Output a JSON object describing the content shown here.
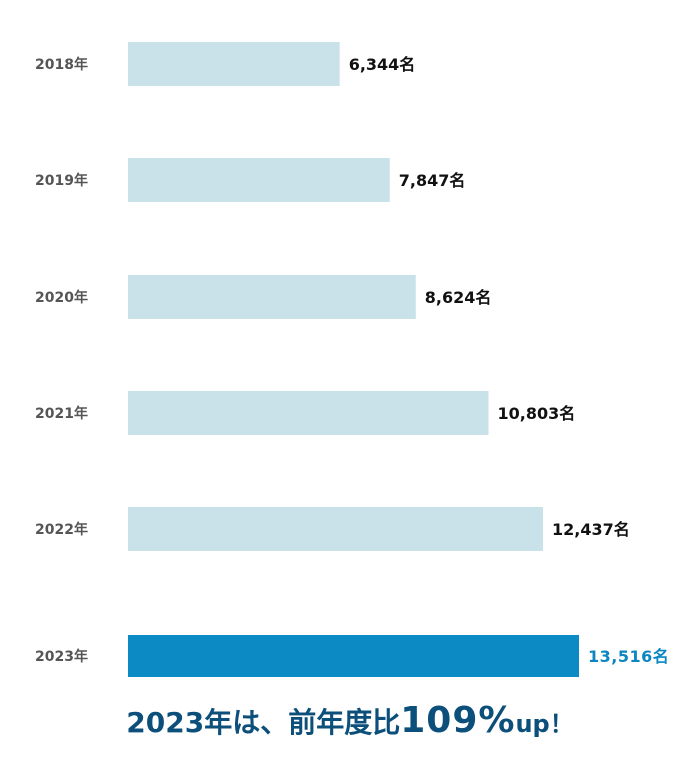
{
  "chart_data": {
    "type": "bar",
    "orientation": "horizontal",
    "categories": [
      "2018年",
      "2019年",
      "2020年",
      "2021年",
      "2022年",
      "2023年"
    ],
    "values": [
      6344,
      7847,
      8624,
      10803,
      12437,
      13516
    ],
    "value_labels": [
      "6,344名",
      "7,847名",
      "8,624名",
      "10,803名",
      "12,437名",
      "13,516名"
    ],
    "highlight_index": 5,
    "xlim": [
      0,
      13516
    ],
    "colors": {
      "bar": "#c9e2ea",
      "highlight_bar": "#0b8ac3",
      "highlight_label": "#0b86c2",
      "category_label": "#555555",
      "value_label": "#111111"
    }
  },
  "headline": {
    "prefix": "2023年は、前年度比",
    "number": "109%",
    "suffix": "up！",
    "color": "#0b4f7a"
  }
}
